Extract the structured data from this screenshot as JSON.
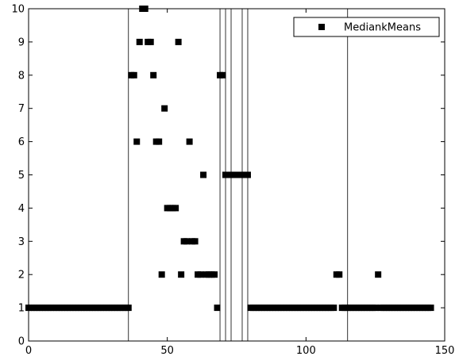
{
  "chart_data": {
    "type": "scatter",
    "title": "",
    "xlabel": "",
    "ylabel": "",
    "xlim": [
      0,
      150
    ],
    "ylim": [
      0,
      10
    ],
    "xticks": [
      0,
      50,
      100,
      150
    ],
    "yticks": [
      0,
      1,
      2,
      3,
      4,
      5,
      6,
      7,
      8,
      9,
      10
    ],
    "grid": false,
    "legend": {
      "position": "top-right",
      "entries": [
        "MediankMeans"
      ]
    },
    "marker": "square",
    "marker_color": "#000000",
    "vertical_lines": [
      36,
      69,
      71,
      73,
      77,
      79,
      115
    ],
    "series": [
      {
        "name": "MediankMeans",
        "points": [
          [
            0,
            1
          ],
          [
            1,
            1
          ],
          [
            2,
            1
          ],
          [
            3,
            1
          ],
          [
            4,
            1
          ],
          [
            5,
            1
          ],
          [
            6,
            1
          ],
          [
            7,
            1
          ],
          [
            8,
            1
          ],
          [
            9,
            1
          ],
          [
            10,
            1
          ],
          [
            11,
            1
          ],
          [
            12,
            1
          ],
          [
            13,
            1
          ],
          [
            14,
            1
          ],
          [
            15,
            1
          ],
          [
            16,
            1
          ],
          [
            17,
            1
          ],
          [
            18,
            1
          ],
          [
            19,
            1
          ],
          [
            20,
            1
          ],
          [
            21,
            1
          ],
          [
            22,
            1
          ],
          [
            23,
            1
          ],
          [
            24,
            1
          ],
          [
            25,
            1
          ],
          [
            26,
            1
          ],
          [
            27,
            1
          ],
          [
            28,
            1
          ],
          [
            29,
            1
          ],
          [
            30,
            1
          ],
          [
            31,
            1
          ],
          [
            32,
            1
          ],
          [
            33,
            1
          ],
          [
            34,
            1
          ],
          [
            35,
            1
          ],
          [
            36,
            1
          ],
          [
            37,
            8
          ],
          [
            38,
            8
          ],
          [
            39,
            6
          ],
          [
            40,
            9
          ],
          [
            41,
            10
          ],
          [
            42,
            10
          ],
          [
            43,
            9
          ],
          [
            44,
            9
          ],
          [
            45,
            8
          ],
          [
            46,
            6
          ],
          [
            47,
            6
          ],
          [
            48,
            2
          ],
          [
            49,
            7
          ],
          [
            50,
            4
          ],
          [
            51,
            4
          ],
          [
            52,
            4
          ],
          [
            53,
            4
          ],
          [
            54,
            9
          ],
          [
            55,
            2
          ],
          [
            56,
            3
          ],
          [
            57,
            3
          ],
          [
            58,
            6
          ],
          [
            59,
            3
          ],
          [
            60,
            3
          ],
          [
            61,
            2
          ],
          [
            62,
            2
          ],
          [
            63,
            5
          ],
          [
            64,
            2
          ],
          [
            65,
            2
          ],
          [
            66,
            2
          ],
          [
            67,
            2
          ],
          [
            68,
            1
          ],
          [
            69,
            8
          ],
          [
            70,
            8
          ],
          [
            71,
            5
          ],
          [
            72,
            5
          ],
          [
            73,
            5
          ],
          [
            74,
            5
          ],
          [
            75,
            5
          ],
          [
            76,
            5
          ],
          [
            77,
            5
          ],
          [
            78,
            5
          ],
          [
            79,
            5
          ],
          [
            80,
            1
          ],
          [
            81,
            1
          ],
          [
            82,
            1
          ],
          [
            83,
            1
          ],
          [
            84,
            1
          ],
          [
            85,
            1
          ],
          [
            86,
            1
          ],
          [
            87,
            1
          ],
          [
            88,
            1
          ],
          [
            89,
            1
          ],
          [
            90,
            1
          ],
          [
            91,
            1
          ],
          [
            92,
            1
          ],
          [
            93,
            1
          ],
          [
            94,
            1
          ],
          [
            95,
            1
          ],
          [
            96,
            1
          ],
          [
            97,
            1
          ],
          [
            98,
            1
          ],
          [
            99,
            1
          ],
          [
            100,
            1
          ],
          [
            101,
            1
          ],
          [
            102,
            1
          ],
          [
            103,
            1
          ],
          [
            104,
            1
          ],
          [
            105,
            1
          ],
          [
            106,
            1
          ],
          [
            107,
            1
          ],
          [
            108,
            1
          ],
          [
            109,
            1
          ],
          [
            110,
            1
          ],
          [
            111,
            2
          ],
          [
            112,
            2
          ],
          [
            113,
            1
          ],
          [
            114,
            1
          ],
          [
            115,
            1
          ],
          [
            116,
            1
          ],
          [
            117,
            1
          ],
          [
            118,
            1
          ],
          [
            119,
            1
          ],
          [
            120,
            1
          ],
          [
            121,
            1
          ],
          [
            122,
            1
          ],
          [
            123,
            1
          ],
          [
            124,
            1
          ],
          [
            125,
            1
          ],
          [
            126,
            2
          ],
          [
            127,
            1
          ],
          [
            128,
            1
          ],
          [
            129,
            1
          ],
          [
            130,
            1
          ],
          [
            131,
            1
          ],
          [
            132,
            1
          ],
          [
            133,
            1
          ],
          [
            134,
            1
          ],
          [
            135,
            1
          ],
          [
            136,
            1
          ],
          [
            137,
            1
          ],
          [
            138,
            1
          ],
          [
            139,
            1
          ],
          [
            140,
            1
          ],
          [
            141,
            1
          ],
          [
            142,
            1
          ],
          [
            143,
            1
          ],
          [
            144,
            1
          ],
          [
            145,
            1
          ]
        ]
      }
    ]
  }
}
